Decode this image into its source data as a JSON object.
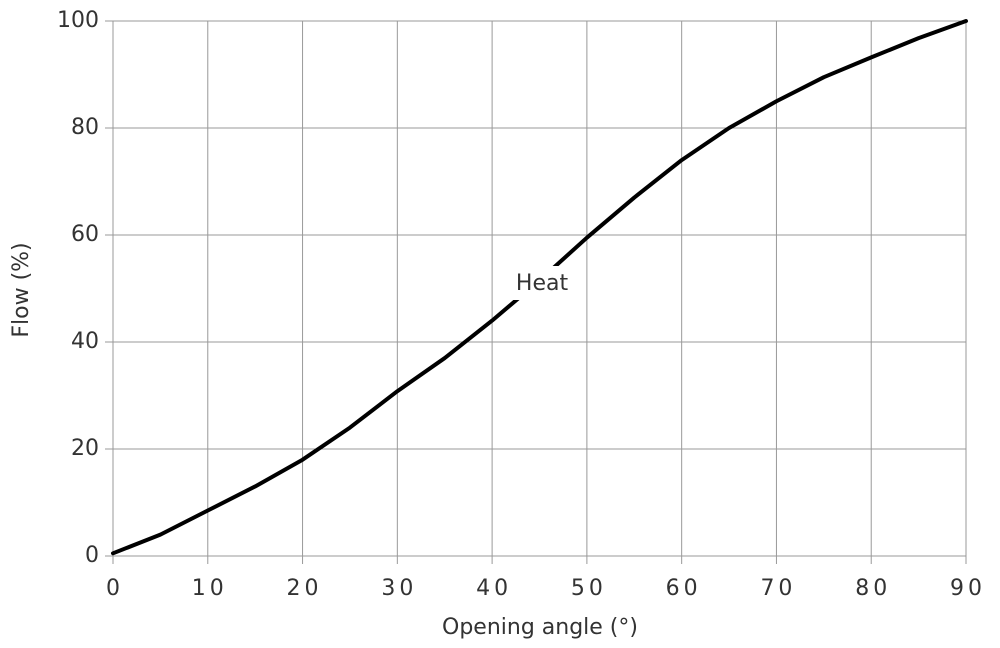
{
  "chart_data": {
    "type": "line",
    "x_label": "Opening angle (°)",
    "y_label": "Flow (%)",
    "x": [
      0,
      5,
      10,
      15,
      20,
      25,
      30,
      35,
      40,
      45,
      50,
      55,
      60,
      65,
      70,
      75,
      80,
      85,
      90
    ],
    "series": [
      {
        "name": "Heat",
        "color": "#000000",
        "values": [
          0.5,
          4,
          8.5,
          13,
          18,
          24,
          30.8,
          37,
          44,
          51.5,
          59.5,
          67,
          74,
          80,
          85,
          89.5,
          93.2,
          96.8,
          100
        ]
      }
    ],
    "xlim": [
      0,
      90
    ],
    "xticks": [
      0,
      10,
      20,
      30,
      40,
      50,
      60,
      70,
      80,
      90
    ],
    "ylim": [
      0,
      100
    ],
    "yticks": [
      0,
      20,
      40,
      60,
      80,
      100
    ],
    "grid": true
  }
}
